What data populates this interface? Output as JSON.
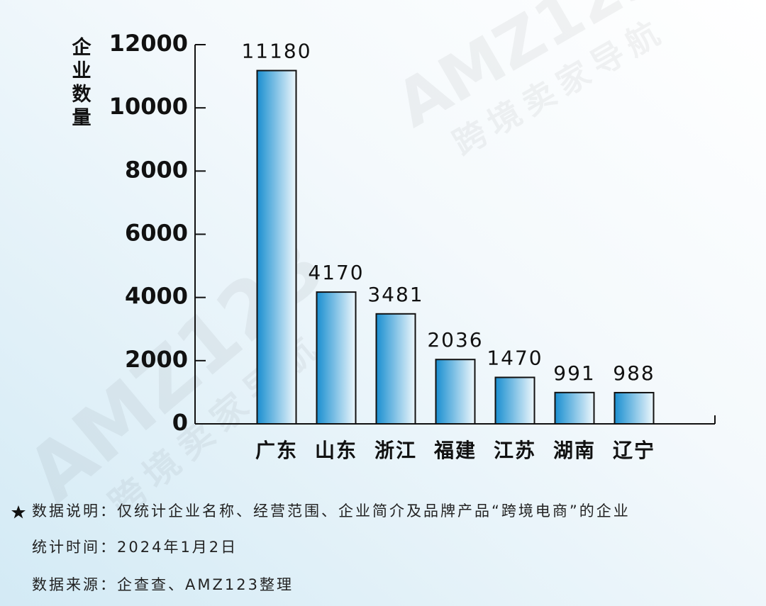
{
  "chart_data": {
    "type": "bar",
    "y_label": "企业数量",
    "categories": [
      "广东",
      "山东",
      "浙江",
      "福建",
      "江苏",
      "湖南",
      "辽宁"
    ],
    "values": [
      11180,
      4170,
      3481,
      2036,
      1470,
      991,
      988
    ],
    "color": "#1a8fd0",
    "ylim": [
      0,
      12000
    ],
    "yticks": [
      0,
      2000,
      4000,
      6000,
      8000,
      10000,
      12000
    ],
    "grid": false
  },
  "notes": [
    "数据说明：仅统计企业名称、经营范围、企业简介及品牌产品“跨境电商”的企业",
    "统计时间：2024年1月2日",
    "数据来源：企查查、AMZ123整理"
  ],
  "watermark": {
    "brand": "AMZ123",
    "tagline": "跨境卖家导航"
  }
}
